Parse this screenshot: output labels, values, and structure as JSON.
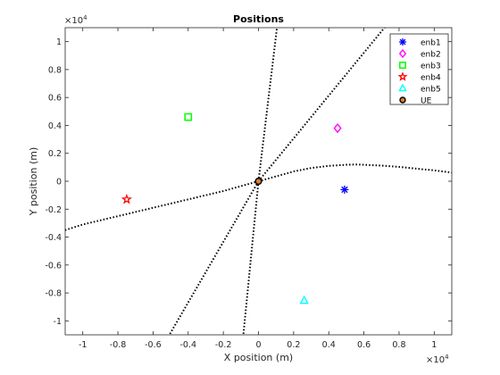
{
  "chart_data": {
    "type": "scatter",
    "title": "Positions",
    "xlabel": "X position (m)",
    "ylabel": "Y position (m)",
    "x_exponent_label": "×10",
    "x_exponent_power": "4",
    "y_exponent_label": "×10",
    "y_exponent_power": "4",
    "xlim": [
      -1.1,
      1.1
    ],
    "ylim": [
      -1.1,
      1.1
    ],
    "xticks": [
      -1,
      -0.8,
      -0.6,
      -0.4,
      -0.2,
      0,
      0.2,
      0.4,
      0.6,
      0.8,
      1
    ],
    "xtick_labels": [
      "-1",
      "-0.8",
      "-0.6",
      "-0.4",
      "-0.2",
      "0",
      "0.2",
      "0.4",
      "0.6",
      "0.8",
      "1"
    ],
    "yticks": [
      -1,
      -0.8,
      -0.6,
      -0.4,
      -0.2,
      0,
      0.2,
      0.4,
      0.6,
      0.8,
      1
    ],
    "ytick_labels": [
      "-1",
      "-0.8",
      "-0.6",
      "-0.4",
      "-0.2",
      "0",
      "0.2",
      "0.4",
      "0.6",
      "0.8",
      "1"
    ],
    "legend_position": "top-right",
    "grid": false,
    "markers": [
      {
        "name": "enb1",
        "x": 0.49,
        "y": -0.06,
        "marker": "asterisk",
        "color": "#0000ff"
      },
      {
        "name": "enb2",
        "x": 0.45,
        "y": 0.38,
        "marker": "diamond",
        "color": "#ff00ff"
      },
      {
        "name": "enb3",
        "x": -0.4,
        "y": 0.46,
        "marker": "square",
        "color": "#00ff00"
      },
      {
        "name": "enb4",
        "x": -0.75,
        "y": -0.13,
        "marker": "pentagram",
        "color": "#ff0000"
      },
      {
        "name": "enb5",
        "x": 0.26,
        "y": -0.855,
        "marker": "triangle",
        "color": "#00ffff"
      },
      {
        "name": "UE",
        "x": 0.0,
        "y": 0.0,
        "marker": "circle",
        "color": "#e07a30"
      }
    ],
    "dotted_lines": [
      {
        "x": [
          0,
          0.11
        ],
        "y": [
          0,
          1.15
        ],
        "color": "#000000"
      },
      {
        "x": [
          0,
          -0.09
        ],
        "y": [
          0,
          -1.15
        ],
        "color": "#000000"
      },
      {
        "x": [
          0,
          0.73
        ],
        "y": [
          0,
          1.12
        ],
        "color": "#000000"
      },
      {
        "x": [
          0,
          -0.53
        ],
        "y": [
          0,
          -1.15
        ],
        "color": "#000000"
      },
      {
        "x": [
          0,
          -0.2,
          -0.4,
          -0.6,
          -0.8,
          -1.0,
          -1.1
        ],
        "y": [
          0,
          -0.07,
          -0.13,
          -0.19,
          -0.25,
          -0.31,
          -0.35
        ],
        "color": "#000000"
      },
      {
        "x": [
          0,
          0.1,
          0.2,
          0.3,
          0.4,
          0.5,
          0.55,
          0.6,
          0.7,
          0.8,
          0.9,
          1.0,
          1.1
        ],
        "y": [
          0,
          0.035,
          0.07,
          0.095,
          0.11,
          0.118,
          0.12,
          0.118,
          0.112,
          0.103,
          0.09,
          0.078,
          0.062
        ],
        "color": "#000000"
      }
    ]
  }
}
